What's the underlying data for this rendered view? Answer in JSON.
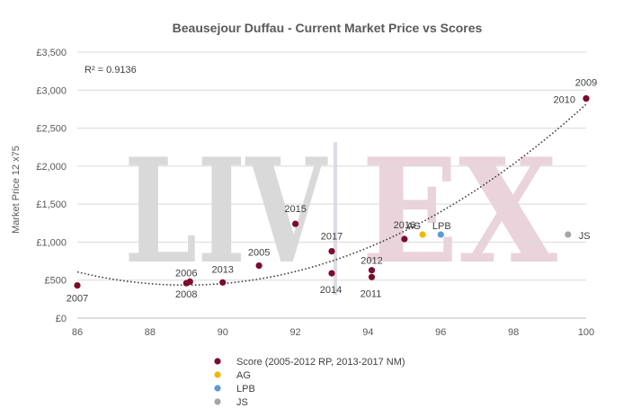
{
  "chart_data": {
    "type": "scatter",
    "title": "Beausejour Duffau - Current Market Price vs Scores",
    "xlabel": "",
    "ylabel": "Market Price 12 x75",
    "xlim": [
      86,
      100
    ],
    "ylim": [
      0,
      3500
    ],
    "x_ticks": [
      "86",
      "88",
      "90",
      "92",
      "94",
      "96",
      "98",
      "100"
    ],
    "y_ticks": [
      "£0",
      "£500",
      "£1,000",
      "£1,500",
      "£2,000",
      "£2,500",
      "£3,000",
      "£3,500"
    ],
    "grid": "horizontal",
    "annotation": "R² = 0.9136",
    "watermark": {
      "left": "LIV",
      "divider": "|",
      "right": "EX"
    },
    "trendline": {
      "style": "dotted",
      "type": "polynomial",
      "color": "#404040"
    },
    "legend_position": "bottom",
    "series": [
      {
        "name": "Score (2005-2012 RP, 2013-2017 NM)",
        "color": "#7B0C2C",
        "points": [
          {
            "x": 86,
            "y": 430,
            "label": "2007"
          },
          {
            "x": 89,
            "y": 460,
            "label": "2008"
          },
          {
            "x": 89.1,
            "y": 480,
            "label": "2006"
          },
          {
            "x": 90,
            "y": 470,
            "label": "2013"
          },
          {
            "x": 91,
            "y": 690,
            "label": "2005"
          },
          {
            "x": 92,
            "y": 1240,
            "label": "2015"
          },
          {
            "x": 93,
            "y": 590,
            "label": "2014"
          },
          {
            "x": 93,
            "y": 880,
            "label": "2017"
          },
          {
            "x": 94.1,
            "y": 540,
            "label": "2011"
          },
          {
            "x": 94.1,
            "y": 630,
            "label": "2012"
          },
          {
            "x": 95,
            "y": 1040,
            "label": "2016"
          },
          {
            "x": 100,
            "y": 2890,
            "label": "2010"
          },
          {
            "x": 100,
            "y": 2890,
            "label": "2009"
          }
        ]
      },
      {
        "name": "AG",
        "color": "#F2B800",
        "points": [
          {
            "x": 95.5,
            "y": 1100,
            "label": "AG"
          }
        ]
      },
      {
        "name": "LPB",
        "color": "#5B9BD5",
        "points": [
          {
            "x": 96,
            "y": 1100,
            "label": "LPB"
          }
        ]
      },
      {
        "name": "JS",
        "color": "#A5A5A5",
        "points": [
          {
            "x": 99.5,
            "y": 1100,
            "label": "JS"
          }
        ]
      }
    ]
  }
}
